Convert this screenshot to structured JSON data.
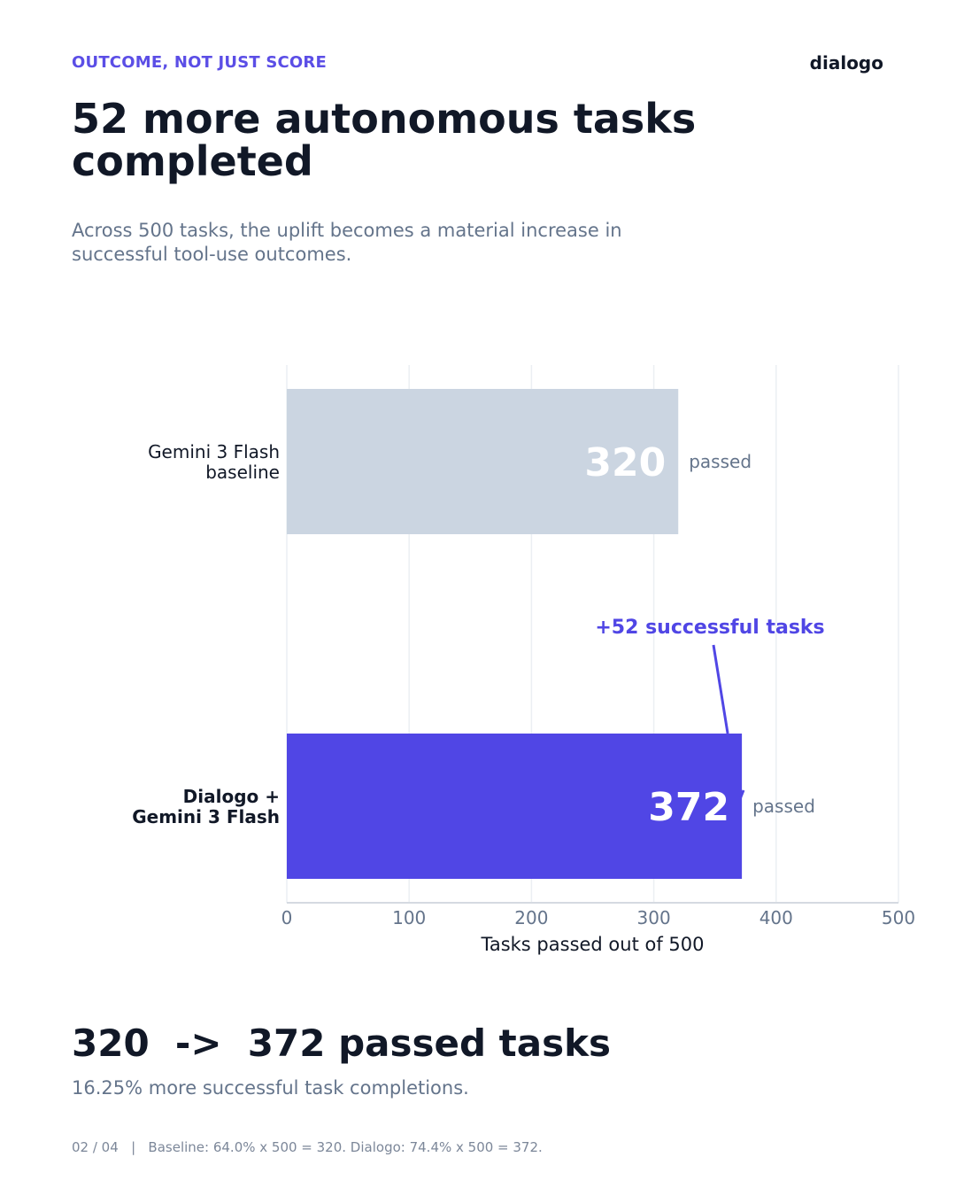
{
  "eyebrow": "OUTCOME, NOT JUST SCORE",
  "brand": "dialogo",
  "title": "52 more autonomous tasks completed",
  "subtitle": "Across 500 tasks, the uplift becomes a material increase in successful tool-use outcomes.",
  "colors": {
    "accent": "#5046e5",
    "baseline_bar": "#cbd5e1",
    "text_dark": "#111827",
    "text_muted": "#64748b"
  },
  "chart_data": {
    "type": "bar",
    "orientation": "horizontal",
    "categories": [
      {
        "lines": [
          "Gemini 3 Flash",
          "baseline"
        ],
        "bold": false
      },
      {
        "lines": [
          "Dialogo +",
          "Gemini 3 Flash"
        ],
        "bold": true
      }
    ],
    "values": [
      320,
      372
    ],
    "value_suffix": "passed",
    "bar_colors": [
      "#cbd5e1",
      "#5046e5"
    ],
    "xlabel": "Tasks passed out of 500",
    "xlim": [
      0,
      500
    ],
    "xticks": [
      0,
      100,
      200,
      300,
      400,
      500
    ],
    "grid": "vertical",
    "annotation": {
      "text": "+52 successful tasks",
      "target_category": 1
    }
  },
  "headline": "320  ->  372 passed tasks",
  "subline": "16.25% more successful task completions.",
  "footer": "02 / 04   |   Baseline: 64.0% x 500 = 320. Dialogo: 74.4% x 500 = 372."
}
